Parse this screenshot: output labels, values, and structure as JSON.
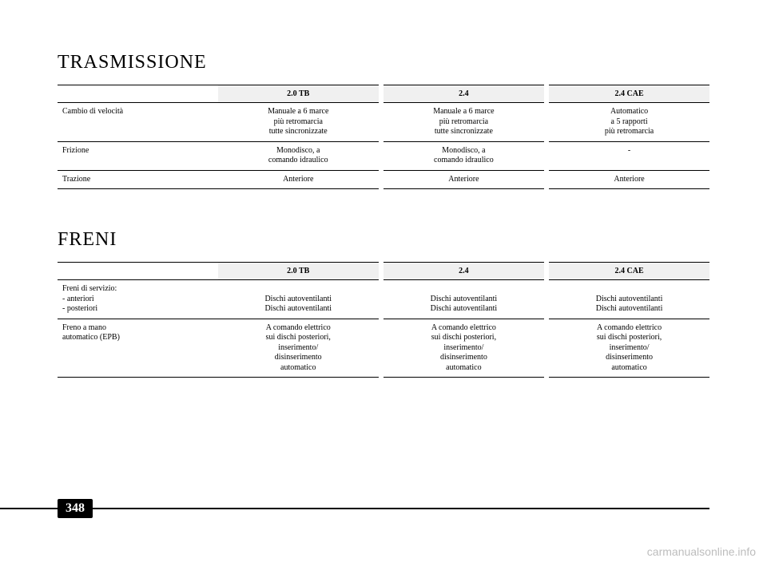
{
  "page_number": "348",
  "watermark": "carmanualsonline.info",
  "sections": {
    "trasmissione": {
      "title": "TRASMISSIONE",
      "columns": [
        "2.0 TB",
        "2.4",
        "2.4 CAE"
      ],
      "rows": [
        {
          "label": "Cambio di velocità",
          "cells": [
            "Manuale a 6 marce\npiù retromarcia\ntutte sincronizzate",
            "Manuale a 6 marce\npiù retromarcia\ntutte sincronizzate",
            "Automatico\na 5 rapporti\npiù retromarcia"
          ]
        },
        {
          "label": "Frizione",
          "cells": [
            "Monodisco, a\ncomando idraulico",
            "Monodisco, a\ncomando idraulico",
            "-"
          ]
        },
        {
          "label": "Trazione",
          "cells": [
            "Anteriore",
            "Anteriore",
            "Anteriore"
          ]
        }
      ]
    },
    "freni": {
      "title": "FRENI",
      "columns": [
        "2.0 TB",
        "2.4",
        "2.4 CAE"
      ],
      "rows": [
        {
          "label": "Freni di servizio:\n            - anteriori\n            - posteriori",
          "cells": [
            "\nDischi autoventilanti\nDischi autoventilanti",
            "\nDischi autoventilanti\nDischi autoventilanti",
            "\nDischi autoventilanti\nDischi autoventilanti"
          ]
        },
        {
          "label": "Freno a mano\nautomatico (EPB)",
          "cells": [
            "A comando elettrico\nsui dischi posteriori,\ninserimento/\ndisinserimento\nautomatico",
            "A comando elettrico\nsui dischi posteriori,\ninserimento/\ndisinserimento\nautomatico",
            "A comando elettrico\nsui dischi posteriori,\ninserimento/\ndisinserimento\nautomatico"
          ]
        }
      ]
    }
  }
}
